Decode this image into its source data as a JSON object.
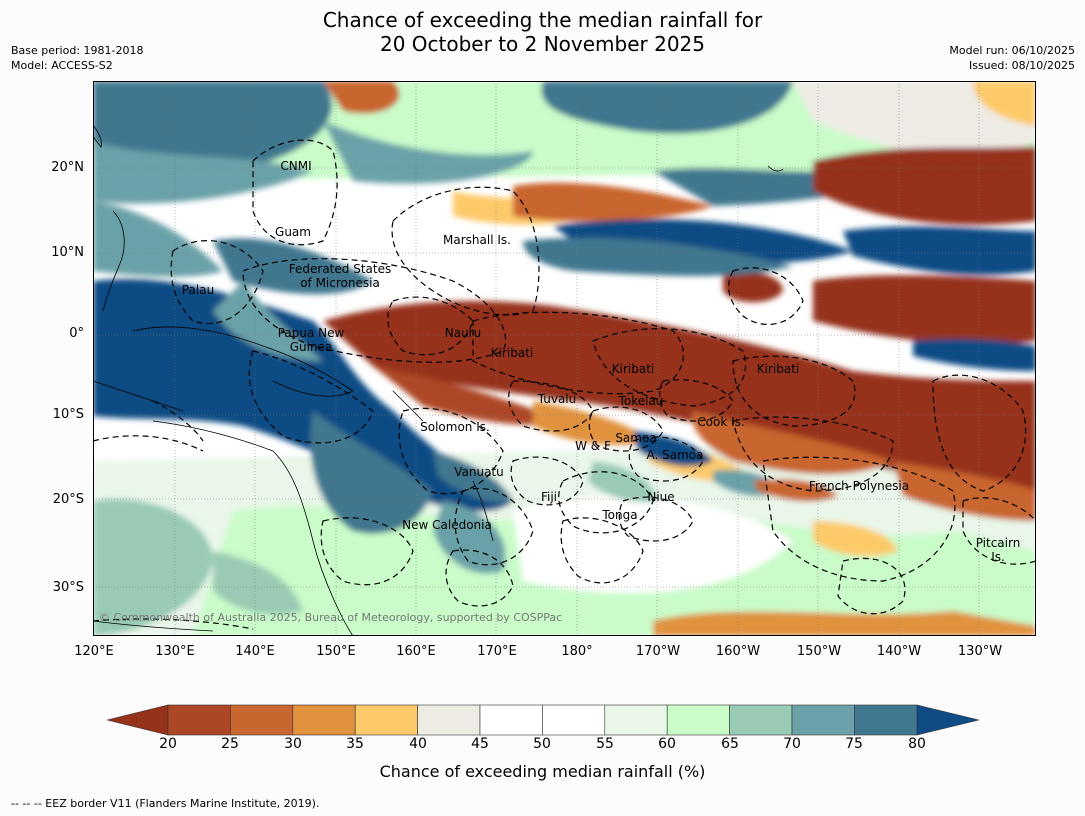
{
  "title": {
    "line1": "Chance of exceeding the median rainfall for",
    "line2": "20 October to 2 November 2025"
  },
  "meta": {
    "base_period": "Base period: 1981-2018",
    "model": "Model: ACCESS-S2",
    "model_run": "Model run: 06/10/2025",
    "issued": "Issued: 08/10/2025"
  },
  "axes": {
    "lat_labels": [
      "20°N",
      "10°N",
      "0°",
      "10°S",
      "20°S",
      "30°S"
    ],
    "lon_labels": [
      "120°E",
      "130°E",
      "140°E",
      "150°E",
      "160°E",
      "170°E",
      "180°",
      "170°W",
      "160°W",
      "150°W",
      "140°W",
      "130°W"
    ]
  },
  "map_labels": {
    "cnmi": "CNMI",
    "guam": "Guam",
    "marshall": "Marshall Is.",
    "fsm_1": "Federated States",
    "fsm_2": "of Micronesia",
    "palau": "Palau",
    "png_1": "Papua New",
    "png_2": "Guinea",
    "nauru": "Nauru",
    "kiribati_w": "Kiribati",
    "kiribati_c": "Kiribati",
    "kiribati_e": "Kiribati",
    "tuvalu": "Tuvalu",
    "tokelau": "Tokelau",
    "cook": "Cook Is.",
    "solomon": "Solomon Is.",
    "samoa": "Samoa",
    "wf": "W & F",
    "asamoa": "A. Samoa",
    "vanuatu": "Vanuatu",
    "fiji": "Fiji",
    "niue": "Niue",
    "tonga": "Tonga",
    "frpoly": "French Polynesia",
    "newcal": "New Caledonia",
    "pitcairn_1": "Pitcairn",
    "pitcairn_2": "Is."
  },
  "copyright": "© Commonwealth of Australia 2025, Bureau of Meteorology, supported by COSPPac",
  "colorbar": {
    "ticks": [
      "20",
      "25",
      "30",
      "35",
      "40",
      "45",
      "50",
      "55",
      "60",
      "65",
      "70",
      "75",
      "80"
    ],
    "colors": [
      "#ad4625",
      "#c9652f",
      "#e0923e",
      "#fdca69",
      "#eeebe5",
      "#ffffff",
      "#ffffff",
      "#e9f6e9",
      "#c9fcc9",
      "#99cbb4",
      "#6ba1a8",
      "#41778f"
    ],
    "low_extend_color": "#96311c",
    "high_extend_color": "#114b85",
    "title": "Chance of exceeding median rainfall (%)"
  },
  "footer": "--  --  -- EEZ border V11 (Flanders Marine Institute, 2019)."
}
